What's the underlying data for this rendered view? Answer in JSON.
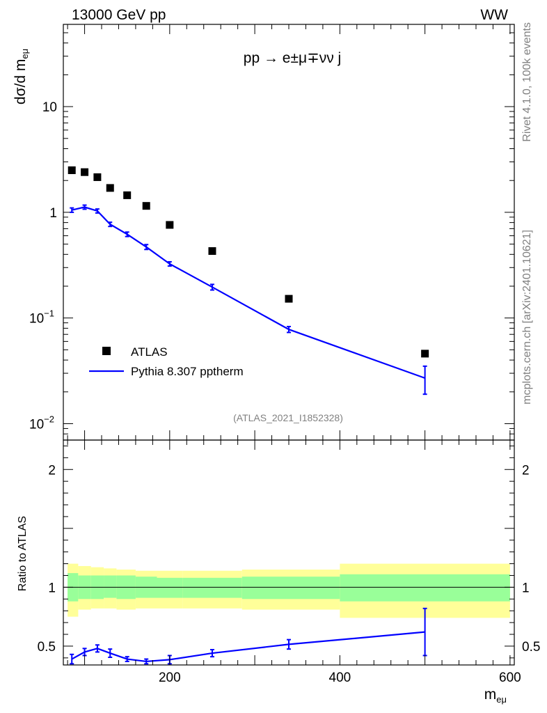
{
  "header": {
    "left": "13000 GeV pp",
    "right": "WW"
  },
  "side_labels": {
    "rivet": "Rivet 4.1.0,  100k events",
    "mcplots": "mcplots.cern.ch [arXiv:2401.10621]"
  },
  "chart_data": [
    {
      "type": "scatter",
      "panel": "main",
      "title": "pp → e±μ∓νν j",
      "ylabel": "dσ/d m",
      "ylabel_sub": "eμ",
      "yscale": "log",
      "ylim": [
        0.007,
        60
      ],
      "xlim": [
        75,
        605
      ],
      "analysis_label": "(ATLAS_2021_I1852328)",
      "y_ticks": [
        {
          "value": 10,
          "label": "10"
        },
        {
          "value": 1,
          "label": "1"
        },
        {
          "value": 0.1,
          "label": "10",
          "exp": "−1"
        },
        {
          "value": 0.01,
          "label": "10",
          "exp": "−2"
        }
      ],
      "legend": [
        {
          "name": "ATLAS",
          "marker": "square",
          "color": "#000000"
        },
        {
          "name": "Pythia 8.307 pptherm",
          "marker": "line",
          "color": "#0000ff"
        }
      ],
      "series": [
        {
          "name": "ATLAS",
          "x": [
            85,
            100,
            115,
            130,
            150,
            172.5,
            200,
            250,
            340,
            500
          ],
          "y": [
            2.5,
            2.4,
            2.15,
            1.7,
            1.45,
            1.15,
            0.76,
            0.43,
            0.152,
            0.046
          ]
        },
        {
          "name": "Pythia 8.307 pptherm",
          "x": [
            85,
            100,
            115,
            130,
            150,
            172.5,
            200,
            250,
            340,
            500
          ],
          "y": [
            1.05,
            1.12,
            1.03,
            0.77,
            0.62,
            0.47,
            0.325,
            0.196,
            0.078,
            0.027
          ],
          "err": [
            0.05,
            0.05,
            0.045,
            0.035,
            0.03,
            0.025,
            0.015,
            0.012,
            0.005,
            0.008
          ]
        }
      ]
    },
    {
      "type": "line",
      "panel": "ratio",
      "ylabel": "Ratio to ATLAS",
      "xlabel": "m",
      "xlabel_sub": "eμ",
      "xlim": [
        75,
        605
      ],
      "ylim": [
        0.34,
        2.25
      ],
      "x_ticks": [
        200,
        400,
        600
      ],
      "y_ticks": [
        {
          "value": 0.5,
          "label": "0.5"
        },
        {
          "value": 1,
          "label": "1"
        },
        {
          "value": 2,
          "label": "2"
        }
      ],
      "bands": {
        "bin_edges": [
          80,
          92.5,
          107.5,
          122.5,
          137.5,
          160,
          185,
          215,
          285,
          400,
          600
        ],
        "inner_lo": [
          0.88,
          0.9,
          0.9,
          0.91,
          0.9,
          0.91,
          0.91,
          0.91,
          0.9,
          0.88
        ],
        "inner_hi": [
          1.12,
          1.1,
          1.1,
          1.1,
          1.1,
          1.09,
          1.08,
          1.08,
          1.09,
          1.11
        ],
        "outer_lo": [
          0.75,
          0.81,
          0.82,
          0.82,
          0.81,
          0.82,
          0.82,
          0.82,
          0.81,
          0.74
        ],
        "outer_hi": [
          1.2,
          1.18,
          1.17,
          1.16,
          1.15,
          1.14,
          1.14,
          1.14,
          1.15,
          1.2
        ],
        "inner_color": "#99ff99",
        "outer_color": "#ffff99"
      },
      "series": [
        {
          "name": "Pythia 8.307 pptherm / ATLAS",
          "x": [
            85,
            100,
            115,
            130,
            150,
            172.5,
            200,
            250,
            340,
            500
          ],
          "y": [
            0.39,
            0.45,
            0.48,
            0.44,
            0.39,
            0.37,
            0.385,
            0.44,
            0.515,
            0.62
          ],
          "err": [
            0.04,
            0.03,
            0.03,
            0.035,
            0.02,
            0.02,
            0.035,
            0.03,
            0.04,
            0.2
          ],
          "color": "#0000ff"
        }
      ]
    }
  ]
}
